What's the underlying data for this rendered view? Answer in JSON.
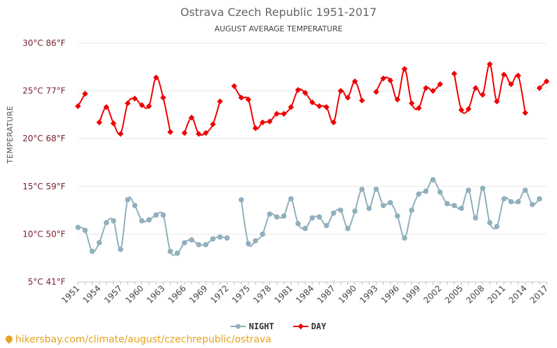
{
  "header": {
    "title": "Ostrava Czech Republic 1951-2017",
    "subtitle": "AUGUST AVERAGE TEMPERATURE"
  },
  "footer": {
    "source": "hikersbay.com/climate/august/czechrepublic/ostrava"
  },
  "colors": {
    "day": "#ee0000",
    "night": "#90b0bc",
    "ytick": "#7a2030",
    "xtick": "#444444",
    "grid": "#e6e6e6",
    "source": "#e8a31f"
  },
  "chart_data": {
    "type": "line",
    "title": "Ostrava Czech Republic 1951-2017",
    "subtitle": "AUGUST AVERAGE TEMPERATURE",
    "ylabel": "TEMPERATURE",
    "xlabel": "",
    "ylim": [
      5,
      30
    ],
    "yticks": [
      {
        "value": 5,
        "label": "5°C 41°F"
      },
      {
        "value": 10,
        "label": "10°C 50°F"
      },
      {
        "value": 15,
        "label": "15°C 59°F"
      },
      {
        "value": 20,
        "label": "20°C 68°F"
      },
      {
        "value": 25,
        "label": "25°C 77°F"
      },
      {
        "value": 30,
        "label": "30°C 86°F"
      }
    ],
    "xlim": [
      1951,
      2017
    ],
    "xticks": [
      1951,
      1954,
      1957,
      1960,
      1963,
      1966,
      1969,
      1972,
      1975,
      1978,
      1981,
      1984,
      1987,
      1990,
      1993,
      1996,
      1999,
      2002,
      2005,
      2008,
      2011,
      2014,
      2017
    ],
    "grid": "horizontal",
    "legend_position": "bottom",
    "series": [
      {
        "name": "NIGHT",
        "x": [
          1951,
          1952,
          1953,
          1954,
          1955,
          1956,
          1957,
          1958,
          1959,
          1960,
          1961,
          1962,
          1963,
          1964,
          1965,
          1966,
          1967,
          1968,
          1969,
          1970,
          1971,
          1972,
          1974,
          1975,
          1976,
          1977,
          1978,
          1979,
          1980,
          1981,
          1982,
          1983,
          1984,
          1985,
          1986,
          1987,
          1988,
          1989,
          1990,
          1991,
          1992,
          1993,
          1994,
          1995,
          1996,
          1997,
          1998,
          1999,
          2000,
          2001,
          2002,
          2003,
          2004,
          2005,
          2006,
          2007,
          2008,
          2009,
          2010,
          2011,
          2012,
          2013,
          2014,
          2015,
          2016,
          2017
        ],
        "values": [
          10.7,
          10.4,
          8.2,
          9.1,
          11.2,
          11.4,
          8.4,
          13.6,
          13.0,
          11.4,
          11.5,
          12.0,
          12.0,
          8.2,
          8.0,
          9.1,
          9.4,
          8.9,
          8.9,
          9.5,
          9.7,
          9.6,
          13.6,
          9.0,
          9.3,
          10.0,
          12.1,
          11.8,
          11.9,
          13.7,
          11.1,
          10.6,
          11.7,
          11.8,
          10.9,
          12.2,
          12.5,
          10.6,
          12.4,
          14.7,
          12.7,
          14.7,
          13.0,
          13.3,
          11.9,
          9.6,
          12.5,
          14.2,
          14.5,
          15.7,
          14.4,
          13.2,
          13.0,
          12.7,
          14.6,
          11.7,
          14.8,
          11.2,
          10.8,
          13.7,
          13.4,
          13.4,
          14.6,
          13.1,
          13.7,
          null
        ]
      },
      {
        "name": "DAY",
        "x": [
          1951,
          1952,
          1954,
          1955,
          1956,
          1957,
          1958,
          1959,
          1960,
          1961,
          1962,
          1963,
          1964,
          1966,
          1967,
          1968,
          1969,
          1970,
          1971,
          1973,
          1974,
          1975,
          1976,
          1977,
          1978,
          1979,
          1980,
          1981,
          1982,
          1983,
          1984,
          1985,
          1986,
          1987,
          1988,
          1989,
          1990,
          1991,
          1993,
          1994,
          1995,
          1996,
          1997,
          1998,
          1999,
          2000,
          2001,
          2002,
          2004,
          2005,
          2006,
          2007,
          2008,
          2009,
          2010,
          2011,
          2012,
          2013,
          2014,
          2016,
          2017
        ],
        "values": [
          23.4,
          24.7,
          21.7,
          23.3,
          21.6,
          20.5,
          23.7,
          24.2,
          23.5,
          23.4,
          26.4,
          24.3,
          20.7,
          20.6,
          22.2,
          20.5,
          20.6,
          21.5,
          23.9,
          25.5,
          24.3,
          24.1,
          21.1,
          21.7,
          21.8,
          22.6,
          22.6,
          23.3,
          25.1,
          24.8,
          23.8,
          23.4,
          23.3,
          21.7,
          25.0,
          24.3,
          26.0,
          24.0,
          24.9,
          26.3,
          26.1,
          24.1,
          27.3,
          23.7,
          23.2,
          25.3,
          25.0,
          25.7,
          26.8,
          23.0,
          23.1,
          25.3,
          24.6,
          27.8,
          23.9,
          26.7,
          25.7,
          26.6,
          22.7,
          25.3,
          26.0
        ]
      }
    ]
  }
}
